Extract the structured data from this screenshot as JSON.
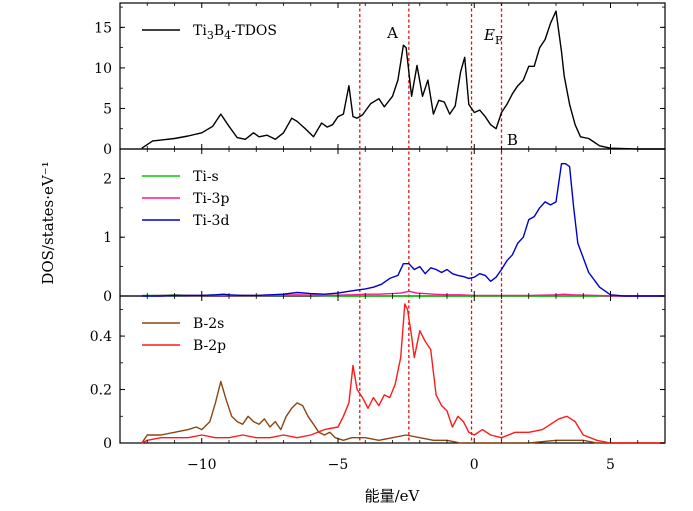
{
  "chart_data": [
    {
      "type": "line",
      "ylim": [
        0,
        18
      ],
      "yticks": [
        0,
        5,
        10,
        15
      ],
      "legend": "top-left",
      "annotations": [
        "A",
        "B"
      ],
      "ef_label": {
        "main": "E",
        "sub": "F"
      },
      "series": [
        {
          "name": "Ti3B4-TDOS",
          "name_parts": {
            "a": "Ti",
            "b": "3",
            "c": "B",
            "d": "4",
            "e": "-TDOS"
          },
          "color": "#000000",
          "x": [
            -12.2,
            -11.8,
            -11.5,
            -11.0,
            -10.5,
            -10.0,
            -9.6,
            -9.3,
            -9.0,
            -8.7,
            -8.4,
            -8.1,
            -7.9,
            -7.6,
            -7.3,
            -7.0,
            -6.7,
            -6.5,
            -6.2,
            -5.9,
            -5.6,
            -5.4,
            -5.2,
            -5.0,
            -4.8,
            -4.6,
            -4.45,
            -4.3,
            -4.1,
            -3.8,
            -3.5,
            -3.3,
            -3.0,
            -2.8,
            -2.6,
            -2.5,
            -2.3,
            -2.1,
            -1.9,
            -1.7,
            -1.5,
            -1.3,
            -1.1,
            -0.9,
            -0.7,
            -0.5,
            -0.35,
            -0.2,
            0.0,
            0.2,
            0.4,
            0.6,
            0.8,
            1.0,
            1.2,
            1.4,
            1.6,
            1.8,
            2.0,
            2.2,
            2.4,
            2.6,
            2.8,
            3.0,
            3.2,
            3.3,
            3.5,
            3.7,
            3.9,
            4.2,
            4.6,
            5.0,
            5.5,
            6.0,
            7.0
          ],
          "values": [
            0.1,
            1.0,
            1.1,
            1.3,
            1.6,
            2.0,
            2.8,
            4.3,
            2.8,
            1.4,
            1.2,
            2.0,
            1.5,
            1.7,
            1.2,
            2.0,
            3.8,
            3.4,
            2.5,
            1.5,
            3.2,
            2.7,
            3.0,
            4.0,
            4.3,
            7.8,
            4.0,
            3.8,
            4.2,
            5.6,
            6.2,
            5.2,
            6.5,
            8.5,
            12.8,
            12.5,
            6.5,
            10.3,
            6.5,
            8.5,
            4.3,
            6.0,
            5.8,
            4.3,
            5.3,
            9.5,
            11.3,
            5.5,
            4.5,
            4.8,
            4.0,
            3.0,
            2.5,
            4.5,
            5.5,
            6.8,
            7.8,
            8.5,
            10.2,
            10.2,
            12.5,
            13.5,
            15.5,
            17.0,
            12.0,
            9.0,
            5.5,
            3.0,
            1.5,
            1.3,
            0.4,
            0.1,
            0.05,
            0.0,
            0.0
          ]
        }
      ]
    },
    {
      "type": "line",
      "ylim": [
        0,
        2.5
      ],
      "yticks": [
        0,
        1,
        2
      ],
      "legend": "top-left",
      "series": [
        {
          "name": "Ti-s",
          "color": "#00cc00",
          "x": [
            -12.2,
            -11.5,
            -11.0,
            -10.5,
            -10.0,
            -9.5,
            -9.0,
            -8.0,
            -7.0,
            -6.0,
            -5.0,
            -4.0,
            -3.0,
            -2.0,
            -1.0,
            0.0,
            1.0,
            2.0,
            3.0,
            4.0,
            5.0,
            6.0,
            7.0
          ],
          "values": [
            0.01,
            0.01,
            0.02,
            0.01,
            0.01,
            0.02,
            0.01,
            0.01,
            0.01,
            0.01,
            0.0,
            0.0,
            0.0,
            0.0,
            0.0,
            0.0,
            0.0,
            0.0,
            0.0,
            0.0,
            0.0,
            0.0,
            0.0
          ]
        },
        {
          "name": "Ti-3p",
          "color": "#ff1493",
          "x": [
            -12.2,
            -11.5,
            -10.5,
            -9.5,
            -8.5,
            -7.5,
            -6.5,
            -5.5,
            -4.5,
            -4.0,
            -3.5,
            -3.0,
            -2.7,
            -2.4,
            -2.1,
            -1.8,
            -1.5,
            -1.0,
            -0.5,
            0.0,
            0.5,
            1.0,
            2.0,
            3.0,
            3.3,
            3.6,
            4.5,
            5.0,
            7.0
          ],
          "values": [
            0.0,
            0.01,
            0.01,
            0.01,
            0.01,
            0.01,
            0.02,
            0.01,
            0.02,
            0.03,
            0.03,
            0.04,
            0.05,
            0.08,
            0.05,
            0.04,
            0.03,
            0.02,
            0.02,
            0.01,
            0.01,
            0.01,
            0.01,
            0.02,
            0.03,
            0.02,
            0.01,
            0.0,
            0.0
          ]
        },
        {
          "name": "Ti-3d",
          "color": "#0000cc",
          "x": [
            -12.2,
            -11.5,
            -11.0,
            -10.5,
            -10.0,
            -9.5,
            -9.2,
            -9.0,
            -8.5,
            -8.0,
            -7.5,
            -7.0,
            -6.5,
            -6.0,
            -5.5,
            -5.0,
            -4.6,
            -4.3,
            -4.0,
            -3.7,
            -3.4,
            -3.1,
            -2.8,
            -2.6,
            -2.4,
            -2.2,
            -2.0,
            -1.8,
            -1.6,
            -1.4,
            -1.2,
            -1.0,
            -0.8,
            -0.6,
            -0.4,
            -0.2,
            0.0,
            0.2,
            0.4,
            0.6,
            0.8,
            1.0,
            1.2,
            1.4,
            1.6,
            1.8,
            2.0,
            2.2,
            2.4,
            2.6,
            2.8,
            3.0,
            3.2,
            3.35,
            3.5,
            3.65,
            3.8,
            4.2,
            4.6,
            5.0,
            5.5,
            7.0
          ],
          "values": [
            0.0,
            0.0,
            0.01,
            0.01,
            0.01,
            0.02,
            0.03,
            0.02,
            0.01,
            0.01,
            0.02,
            0.03,
            0.06,
            0.04,
            0.03,
            0.05,
            0.08,
            0.1,
            0.12,
            0.15,
            0.2,
            0.3,
            0.35,
            0.55,
            0.55,
            0.45,
            0.5,
            0.38,
            0.48,
            0.45,
            0.4,
            0.45,
            0.38,
            0.35,
            0.33,
            0.3,
            0.32,
            0.38,
            0.35,
            0.25,
            0.32,
            0.45,
            0.6,
            0.7,
            0.9,
            1.0,
            1.3,
            1.35,
            1.5,
            1.6,
            1.55,
            1.6,
            2.25,
            2.25,
            2.2,
            1.5,
            0.9,
            0.4,
            0.15,
            0.02,
            0.0,
            0.0
          ]
        }
      ]
    },
    {
      "type": "line",
      "ylim": [
        0,
        0.55
      ],
      "yticks": [
        0,
        0.2,
        0.4
      ],
      "xlim": [
        -13,
        7
      ],
      "xticks": [
        -10,
        -5,
        0,
        5
      ],
      "xlabel": "能量/eV",
      "legend": "top-left",
      "series": [
        {
          "name": "B-2s",
          "color": "#8b4513",
          "x": [
            -12.2,
            -12.0,
            -11.5,
            -11.0,
            -10.5,
            -10.2,
            -10.0,
            -9.7,
            -9.5,
            -9.3,
            -9.1,
            -8.9,
            -8.7,
            -8.5,
            -8.3,
            -8.1,
            -7.9,
            -7.7,
            -7.5,
            -7.3,
            -7.1,
            -6.9,
            -6.7,
            -6.5,
            -6.3,
            -6.1,
            -5.9,
            -5.7,
            -5.5,
            -5.3,
            -5.1,
            -4.8,
            -4.5,
            -4.0,
            -3.5,
            -3.0,
            -2.5,
            -2.0,
            -1.5,
            -1.0,
            -0.5,
            0.0,
            0.5,
            1.0,
            2.0,
            3.0,
            3.5,
            4.0,
            4.5,
            5.0,
            6.0,
            7.0
          ],
          "values": [
            0.0,
            0.03,
            0.03,
            0.04,
            0.05,
            0.06,
            0.05,
            0.08,
            0.15,
            0.23,
            0.16,
            0.1,
            0.08,
            0.07,
            0.1,
            0.08,
            0.07,
            0.09,
            0.06,
            0.08,
            0.05,
            0.1,
            0.13,
            0.15,
            0.14,
            0.1,
            0.07,
            0.04,
            0.03,
            0.04,
            0.02,
            0.01,
            0.02,
            0.02,
            0.01,
            0.02,
            0.03,
            0.02,
            0.01,
            0.01,
            0.0,
            0.0,
            0.0,
            0.0,
            0.0,
            0.01,
            0.01,
            0.01,
            0.0,
            0.0,
            0.0,
            0.0
          ]
        },
        {
          "name": "B-2p",
          "color": "#ff1a1a",
          "x": [
            -12.2,
            -12.0,
            -11.5,
            -11.0,
            -10.5,
            -10.0,
            -9.5,
            -9.0,
            -8.5,
            -8.0,
            -7.5,
            -7.0,
            -6.5,
            -6.0,
            -5.5,
            -5.0,
            -4.8,
            -4.6,
            -4.45,
            -4.3,
            -4.1,
            -3.9,
            -3.7,
            -3.5,
            -3.3,
            -3.1,
            -2.9,
            -2.7,
            -2.55,
            -2.45,
            -2.3,
            -2.2,
            -2.0,
            -1.8,
            -1.6,
            -1.4,
            -1.2,
            -1.0,
            -0.8,
            -0.6,
            -0.4,
            -0.2,
            0.0,
            0.3,
            0.6,
            1.0,
            1.5,
            2.0,
            2.5,
            2.8,
            3.1,
            3.4,
            3.7,
            4.0,
            4.5,
            5.0,
            6.0,
            7.0
          ],
          "values": [
            0.0,
            0.01,
            0.02,
            0.02,
            0.02,
            0.03,
            0.02,
            0.02,
            0.03,
            0.02,
            0.02,
            0.03,
            0.02,
            0.03,
            0.05,
            0.06,
            0.1,
            0.15,
            0.29,
            0.2,
            0.17,
            0.13,
            0.17,
            0.14,
            0.18,
            0.17,
            0.22,
            0.32,
            0.52,
            0.5,
            0.4,
            0.32,
            0.42,
            0.38,
            0.35,
            0.18,
            0.14,
            0.12,
            0.06,
            0.1,
            0.08,
            0.04,
            0.03,
            0.05,
            0.03,
            0.02,
            0.04,
            0.04,
            0.05,
            0.07,
            0.09,
            0.1,
            0.08,
            0.03,
            0.01,
            0.0,
            0.0,
            0.0
          ]
        }
      ]
    }
  ],
  "vlines": [
    -4.2,
    -2.4,
    -0.1,
    1.0
  ],
  "ylabel": "DOS/states·eV⁻¹"
}
